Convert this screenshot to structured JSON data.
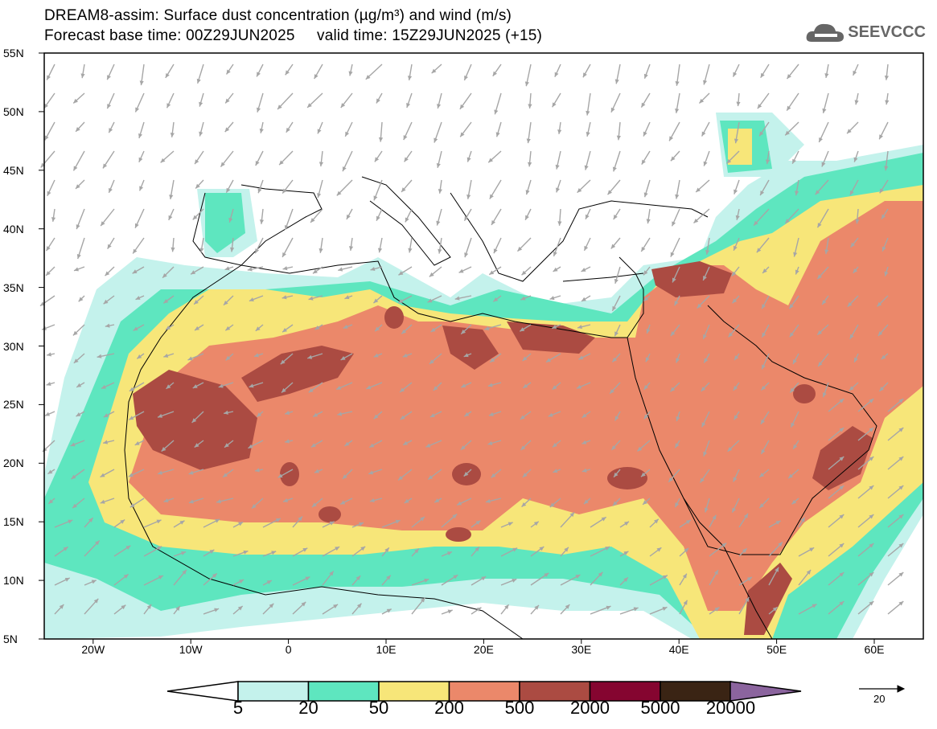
{
  "title_line1": "DREAM8-assim: Surface dust concentration (µg/m³) and wind (m/s)",
  "title_line2": "Forecast base time: 00Z29JUN2025     valid time: 15Z29JUN2025 (+15)",
  "logo": "SEEVCCC",
  "lat_labels": [
    "55N",
    "50N",
    "45N",
    "40N",
    "35N",
    "30N",
    "25N",
    "20N",
    "15N",
    "10N",
    "5N"
  ],
  "lon_labels": [
    "20W",
    "10W",
    "0",
    "10E",
    "20E",
    "30E",
    "40E",
    "50E",
    "60E"
  ],
  "colorbar": {
    "labels": [
      "5",
      "20",
      "50",
      "200",
      "500",
      "2000",
      "5000",
      "20000"
    ],
    "colors": [
      "#c4f2ec",
      "#5ee6bf",
      "#f7e679",
      "#eb886a",
      "#ab4b42",
      "#850530",
      "#3a2414",
      "#8b649e"
    ]
  },
  "wind_reference": {
    "label": "20"
  }
}
